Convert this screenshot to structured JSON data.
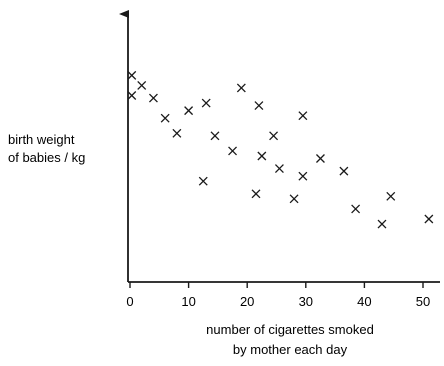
{
  "chart_data": {
    "type": "scatter",
    "title": "",
    "xlabel": [
      "number of cigarettes smoked",
      "by mother each day"
    ],
    "ylabel": [
      "birth weight",
      "of babies / kg"
    ],
    "xlim": [
      0,
      52
    ],
    "ylim": [
      0,
      10
    ],
    "xticks": [
      0,
      10,
      20,
      30,
      40,
      50
    ],
    "yticks": [],
    "grid": false,
    "marker": "x",
    "points": [
      {
        "x": 0.3,
        "y": 8.2
      },
      {
        "x": 0.3,
        "y": 7.4
      },
      {
        "x": 2,
        "y": 7.8
      },
      {
        "x": 4,
        "y": 7.3
      },
      {
        "x": 6,
        "y": 6.5
      },
      {
        "x": 8,
        "y": 5.9
      },
      {
        "x": 10,
        "y": 6.8
      },
      {
        "x": 13,
        "y": 7.1
      },
      {
        "x": 12.5,
        "y": 4.0
      },
      {
        "x": 14.5,
        "y": 5.8
      },
      {
        "x": 17.5,
        "y": 5.2
      },
      {
        "x": 19,
        "y": 7.7
      },
      {
        "x": 22,
        "y": 7.0
      },
      {
        "x": 22.5,
        "y": 5.0
      },
      {
        "x": 21.5,
        "y": 3.5
      },
      {
        "x": 24.5,
        "y": 5.8
      },
      {
        "x": 25.5,
        "y": 4.5
      },
      {
        "x": 28,
        "y": 3.3
      },
      {
        "x": 29.5,
        "y": 6.6
      },
      {
        "x": 29.5,
        "y": 4.2
      },
      {
        "x": 32.5,
        "y": 4.9
      },
      {
        "x": 36.5,
        "y": 4.4
      },
      {
        "x": 38.5,
        "y": 2.9
      },
      {
        "x": 43,
        "y": 2.3
      },
      {
        "x": 44.5,
        "y": 3.4
      },
      {
        "x": 51,
        "y": 2.5
      }
    ]
  }
}
